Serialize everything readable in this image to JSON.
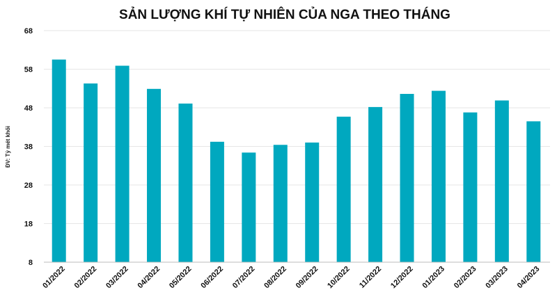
{
  "chart_data": {
    "type": "bar",
    "title": "SẢN LƯỢNG KHÍ TỰ NHIÊN CỦA NGA THEO THÁNG",
    "ylabel": "ĐV: Tỷ mét khối",
    "xlabel": "",
    "categories": [
      "01/2022",
      "02/2022",
      "03/2022",
      "04/2022",
      "05/2022",
      "06/2022",
      "07/2022",
      "08/2022",
      "09/2022",
      "10/2022",
      "11/2022",
      "12/2022",
      "01/2023",
      "02/2023",
      "03/2023",
      "04/2023"
    ],
    "values": [
      60.5,
      54.3,
      58.9,
      52.9,
      49.1,
      39.2,
      36.4,
      38.4,
      39.0,
      45.7,
      48.2,
      51.6,
      52.4,
      46.8,
      49.9,
      44.5
    ],
    "ylim": [
      8,
      68
    ],
    "yticks": [
      8,
      18,
      28,
      38,
      48,
      58,
      68
    ],
    "grid": true,
    "legend": "none",
    "bar_color": "#00a8bf"
  }
}
